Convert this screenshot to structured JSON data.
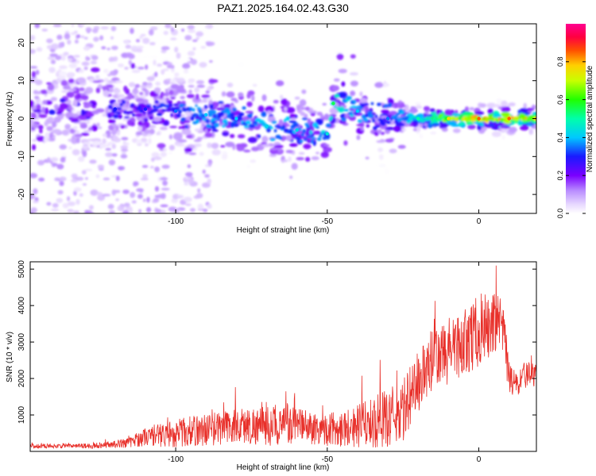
{
  "figure": {
    "title": "PAZ1.2025.164.02.43.G30"
  },
  "chart_data": [
    {
      "type": "heatmap",
      "title": "PAZ1.2025.164.02.43.G30",
      "xlabel": "Height of straight line (km)",
      "ylabel": "Frequency (Hz)",
      "xlim": [
        -148,
        19
      ],
      "ylim": [
        -25,
        25
      ],
      "x_ticks": [
        -100,
        -50,
        0
      ],
      "y_ticks": [
        -20,
        -10,
        0,
        10,
        20
      ],
      "x_tick_labels": [
        "-100",
        "-50",
        "0"
      ],
      "y_tick_labels": [
        "-20",
        "-10",
        "0",
        "10",
        "20"
      ],
      "colorbar": {
        "label": "Normalized spectral amplitude",
        "range": [
          0,
          1
        ],
        "ticks": [
          0.0,
          0.2,
          0.4,
          0.6,
          0.8
        ],
        "tick_labels": [
          "0.0",
          "0.2",
          "0.4",
          "0.6",
          "0.8"
        ],
        "colormap": "rainbow (white/lavender → violet → blue → cyan → green → yellow → orange → red → magenta)"
      },
      "ridge": {
        "description": "dominant spectral line",
        "height_km": [
          -120,
          -110,
          -100,
          -90,
          -80,
          -70,
          -60,
          -50,
          -48,
          -40,
          -30,
          -20,
          -10,
          0,
          10,
          19
        ],
        "frequency_hz": [
          2.5,
          2.5,
          2,
          1,
          0,
          -2,
          -3,
          -4,
          4,
          2,
          0,
          0,
          0,
          0,
          0,
          0
        ],
        "peak_amplitude": [
          0.3,
          0.3,
          0.35,
          0.4,
          0.4,
          0.42,
          0.42,
          0.45,
          0.55,
          0.4,
          0.35,
          0.5,
          0.75,
          0.85,
          0.85,
          0.8
        ]
      }
    },
    {
      "type": "line",
      "xlabel": "Height of straight line (km)",
      "ylabel": "SNR (10 * v/v)",
      "xlim": [
        -148,
        19
      ],
      "ylim": [
        0,
        5200
      ],
      "x_ticks": [
        -100,
        -50,
        0
      ],
      "y_ticks": [
        1000,
        2000,
        3000,
        4000,
        5000
      ],
      "x_tick_labels": [
        "-100",
        "-50",
        "0"
      ],
      "y_tick_labels": [
        "1000",
        "2000",
        "3000",
        "4000",
        "5000"
      ],
      "series": [
        {
          "color": "#e8302a",
          "envelope": {
            "x": [
              -148,
              -140,
              -130,
              -120,
              -115,
              -110,
              -100,
              -90,
              -80,
              -70,
              -60,
              -50,
              -40,
              -30,
              -25,
              -20,
              -15,
              -10,
              -5,
              0,
              5,
              8,
              10,
              13,
              15,
              19
            ],
            "mean": [
              150,
              150,
              150,
              200,
              250,
              400,
              500,
              600,
              700,
              700,
              700,
              600,
              700,
              900,
              1100,
              1900,
              2500,
              2700,
              3000,
              3300,
              3500,
              3300,
              2000,
              1800,
              2100,
              2100
            ],
            "amplitude": [
              60,
              60,
              70,
              100,
              150,
              250,
              400,
              450,
              500,
              550,
              500,
              450,
              600,
              800,
              900,
              900,
              900,
              900,
              900,
              1000,
              900,
              800,
              500,
              300,
              400,
              300
            ]
          }
        }
      ]
    }
  ]
}
